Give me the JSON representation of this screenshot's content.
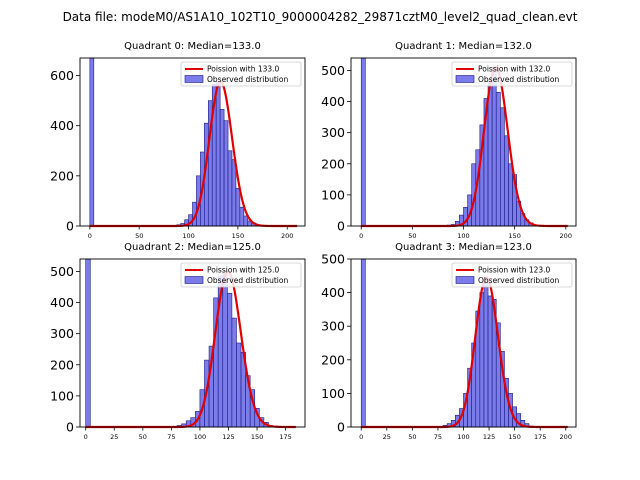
{
  "figure_title": "Data file: modeM0/AS1A10_102T10_9000004282_29871cztM0_level2_quad_clean.evt",
  "colors": {
    "bar_fill": "#7b7bea",
    "bar_edge": "#1a1a80",
    "fit_line": "#e00000"
  },
  "legend": {
    "fit_label_prefix": "Poission with ",
    "hist_label": "Observed distribution"
  },
  "chart_data": [
    {
      "type": "bar",
      "title": "Quadrant 0: Median=133.0",
      "median": 133.0,
      "fit_label": "Poission with 133.0",
      "xlim": [
        -10,
        218
      ],
      "ylim": [
        0,
        670
      ],
      "xticks": [
        0,
        50,
        100,
        150,
        200
      ],
      "yticks": [
        0,
        200,
        400,
        600
      ],
      "bin_width": 4,
      "bin_starts": [
        0,
        88,
        92,
        96,
        100,
        104,
        108,
        112,
        116,
        120,
        124,
        128,
        132,
        136,
        140,
        144,
        148,
        152,
        156,
        160,
        164,
        168,
        172,
        176,
        180
      ],
      "counts": [
        670,
        5,
        10,
        25,
        45,
        95,
        200,
        295,
        410,
        500,
        565,
        575,
        465,
        420,
        300,
        265,
        150,
        75,
        40,
        20,
        12,
        5,
        3,
        2,
        1
      ]
    },
    {
      "type": "bar",
      "title": "Quadrant 1: Median=132.0",
      "median": 132.0,
      "fit_label": "Poission with 132.0",
      "xlim": [
        -10,
        210
      ],
      "ylim": [
        0,
        540
      ],
      "xticks": [
        0,
        50,
        100,
        150,
        200
      ],
      "yticks": [
        0,
        100,
        200,
        300,
        400,
        500
      ],
      "bin_width": 4,
      "bin_starts": [
        0,
        84,
        88,
        92,
        96,
        100,
        104,
        108,
        112,
        116,
        120,
        124,
        128,
        132,
        136,
        140,
        144,
        148,
        152,
        156,
        160,
        164,
        168
      ],
      "counts": [
        540,
        3,
        5,
        15,
        35,
        60,
        100,
        200,
        245,
        325,
        410,
        470,
        510,
        430,
        380,
        290,
        200,
        165,
        80,
        40,
        20,
        10,
        3
      ]
    },
    {
      "type": "bar",
      "title": "Quadrant 2: Median=125.0",
      "median": 125.0,
      "fit_label": "Poission with 125.0",
      "xlim": [
        -5,
        192
      ],
      "ylim": [
        0,
        540
      ],
      "xticks": [
        0,
        25,
        50,
        75,
        100,
        125,
        150,
        175
      ],
      "yticks": [
        0,
        100,
        200,
        300,
        400,
        500
      ],
      "bin_width": 4,
      "bin_starts": [
        0,
        76,
        80,
        84,
        88,
        92,
        96,
        100,
        104,
        108,
        112,
        116,
        120,
        124,
        128,
        132,
        136,
        140,
        144,
        148,
        152,
        156,
        160,
        164,
        168
      ],
      "counts": [
        540,
        2,
        5,
        10,
        20,
        30,
        50,
        120,
        215,
        260,
        415,
        485,
        500,
        430,
        350,
        270,
        240,
        165,
        120,
        60,
        30,
        15,
        5,
        3,
        1
      ]
    },
    {
      "type": "bar",
      "title": "Quadrant 3: Median=123.0",
      "median": 123.0,
      "fit_label": "Poission with 123.0",
      "xlim": [
        -10,
        210
      ],
      "ylim": [
        0,
        500
      ],
      "xticks": [
        0,
        25,
        50,
        75,
        100,
        125,
        150,
        175,
        200
      ],
      "yticks": [
        0,
        100,
        200,
        300,
        400,
        500
      ],
      "bin_width": 4,
      "bin_starts": [
        0,
        76,
        80,
        84,
        88,
        92,
        96,
        100,
        104,
        108,
        112,
        116,
        120,
        124,
        128,
        132,
        136,
        140,
        144,
        148,
        152,
        156,
        160,
        164
      ],
      "counts": [
        500,
        2,
        5,
        10,
        20,
        35,
        55,
        100,
        175,
        250,
        345,
        400,
        445,
        390,
        380,
        310,
        225,
        145,
        100,
        60,
        40,
        20,
        10,
        3
      ]
    }
  ]
}
